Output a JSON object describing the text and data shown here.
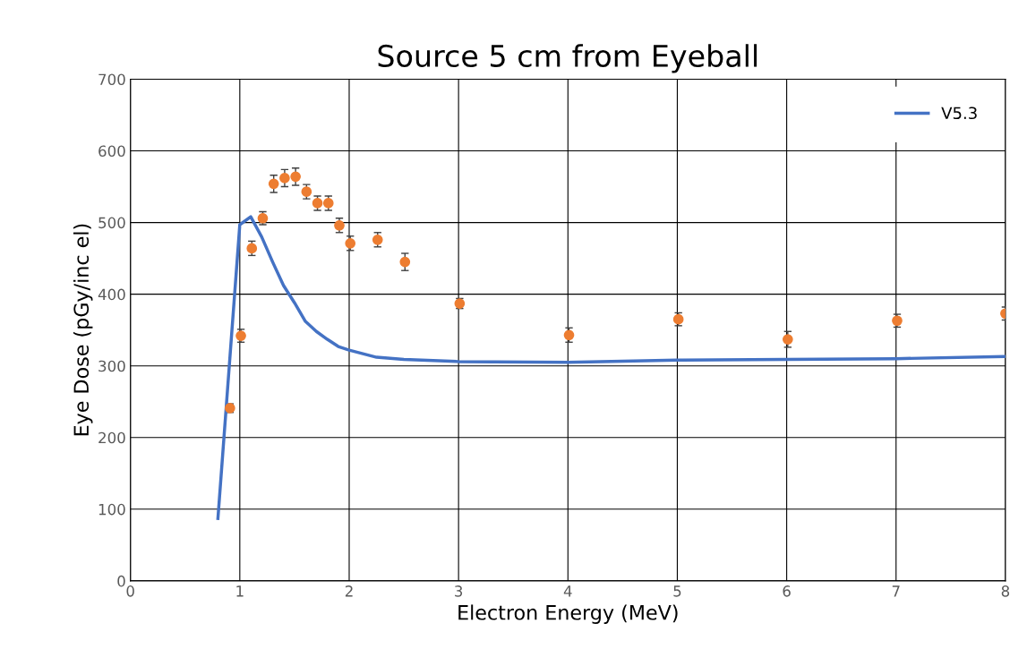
{
  "chart_data": {
    "type": "line",
    "title": "Source 5 cm from Eyeball",
    "xlabel": "Electron Energy (MeV)",
    "ylabel": "Eye Dose (pGy/inc el)",
    "xlim": [
      0,
      8
    ],
    "xticks": [
      0,
      1,
      2,
      3,
      4,
      5,
      6,
      7,
      8
    ],
    "ylim": [
      0,
      700
    ],
    "yticks": [
      0,
      100,
      200,
      300,
      400,
      500,
      600,
      700
    ],
    "grid": true,
    "legend": "top right",
    "series": [
      {
        "type": "scatter",
        "color": "#ed7d31",
        "marker": "circle",
        "x": [
          0.91,
          1.01,
          1.11,
          1.21,
          1.31,
          1.41,
          1.51,
          1.61,
          1.71,
          1.81,
          1.91,
          2.01,
          2.26,
          2.51,
          3.01,
          4.01,
          5.01,
          6.01,
          7.01,
          8.0
        ],
        "values": [
          241,
          342,
          464,
          506,
          554,
          562,
          564,
          543,
          527,
          527,
          496,
          471,
          476,
          445,
          387,
          343,
          365,
          337,
          363,
          373
        ],
        "errors": [
          6,
          9,
          10,
          9,
          12,
          12,
          12,
          10,
          10,
          10,
          10,
          10,
          10,
          12,
          7,
          10,
          9,
          11,
          9,
          9
        ]
      },
      {
        "name": "V5.3",
        "color": "#4472c4",
        "marker": "none",
        "line_style": "solid",
        "x": [
          0.8,
          1.0,
          1.1,
          1.2,
          1.3,
          1.4,
          1.5,
          1.6,
          1.7,
          1.8,
          1.9,
          2.0,
          2.25,
          2.5,
          3,
          4,
          5,
          6,
          7,
          8
        ],
        "values": [
          87,
          497,
          508,
          480,
          445,
          412,
          388,
          362,
          348,
          337,
          327,
          322,
          312,
          309,
          306,
          305,
          308,
          309,
          310,
          313
        ]
      }
    ]
  }
}
